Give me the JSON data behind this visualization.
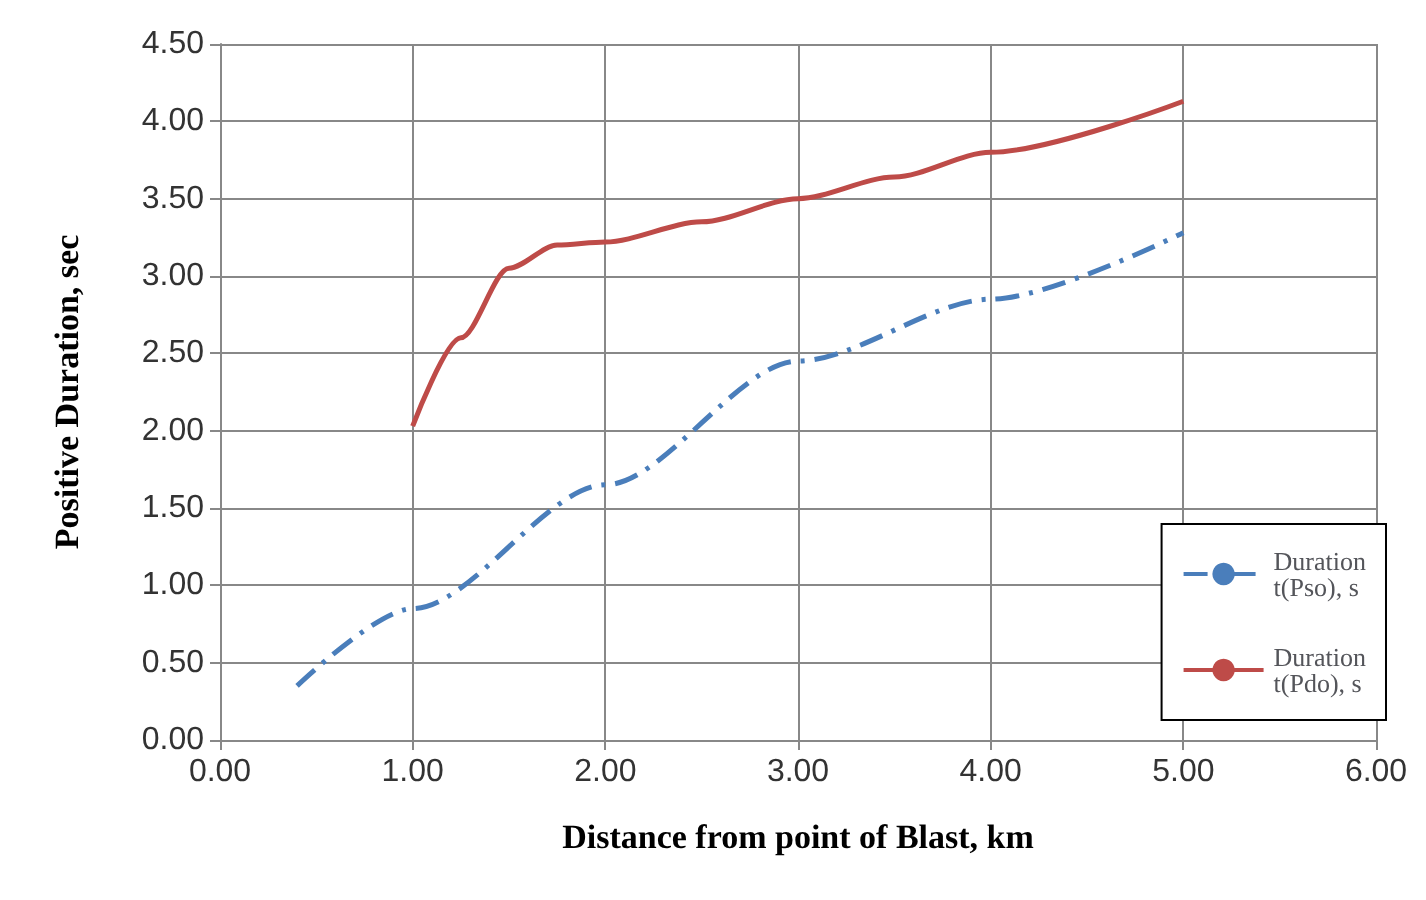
{
  "chart_data": {
    "type": "line",
    "xlabel": "Distance from point of Blast, km",
    "ylabel": "Positive Duration, sec",
    "xlim": [
      0,
      6
    ],
    "xticks": [
      {
        "value": 0,
        "label": "0.00"
      },
      {
        "value": 1,
        "label": "1.00"
      },
      {
        "value": 2,
        "label": "2.00"
      },
      {
        "value": 3,
        "label": "3.00"
      },
      {
        "value": 4,
        "label": "4.00"
      },
      {
        "value": 5,
        "label": "5.00"
      },
      {
        "value": 6,
        "label": "6.00"
      }
    ],
    "ylim": [
      0,
      4.5
    ],
    "yticks": [
      {
        "value": 0,
        "label": "0.00"
      },
      {
        "value": 0.5,
        "label": "0.50"
      },
      {
        "value": 1,
        "label": "1.00"
      },
      {
        "value": 1.5,
        "label": "1.50"
      },
      {
        "value": 2,
        "label": "2.00"
      },
      {
        "value": 2.5,
        "label": "2.50"
      },
      {
        "value": 3,
        "label": "3.00"
      },
      {
        "value": 3.5,
        "label": "3.50"
      },
      {
        "value": 4,
        "label": "4.00"
      },
      {
        "value": 4.5,
        "label": "4.50"
      }
    ],
    "grid": true,
    "legend": "bottom right",
    "marker": "none",
    "series": [
      {
        "name": "Duration t(Pso), s",
        "color": "#4a7ebb",
        "line_style": "dashdot",
        "x": [
          0.4,
          1,
          2,
          3,
          4,
          5
        ],
        "values": [
          0.35,
          0.85,
          1.65,
          2.45,
          2.85,
          3.28
        ]
      },
      {
        "name": "Duration t(Pdo), s",
        "color": "#be4b48",
        "line_style": "solid",
        "x": [
          1,
          1.25,
          1.5,
          1.75,
          2,
          2.5,
          3,
          3.5,
          4,
          5
        ],
        "values": [
          2.03,
          2.6,
          3.05,
          3.2,
          3.22,
          3.35,
          3.5,
          3.64,
          3.8,
          4.13
        ]
      }
    ]
  }
}
